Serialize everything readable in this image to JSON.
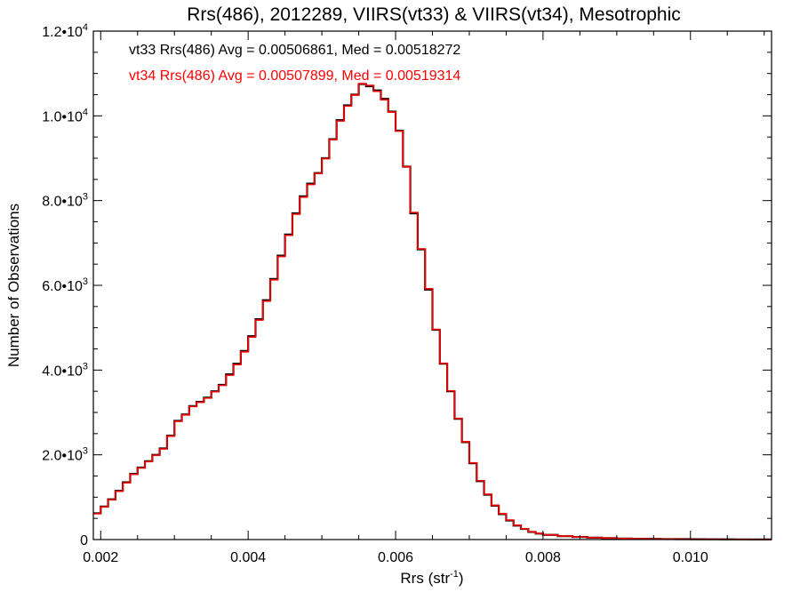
{
  "chart_data": {
    "type": "line",
    "title": "Rrs(486), 2012289, VIIRS(vt33) & VIIRS(vt34), Mesotrophic",
    "xlabel": "Rrs (str",
    "xlabel_sup": "-1",
    "xlabel_suffix": ")",
    "ylabel": "Number of Observations",
    "xlim": [
      0.0019,
      0.0111
    ],
    "ylim": [
      0,
      12000
    ],
    "grid": false,
    "legend_position": "top-left",
    "x_ticks": [
      {
        "value": 0.002,
        "label": "0.002"
      },
      {
        "value": 0.004,
        "label": "0.004"
      },
      {
        "value": 0.006,
        "label": "0.006"
      },
      {
        "value": 0.008,
        "label": "0.008"
      },
      {
        "value": 0.01,
        "label": "0.010"
      }
    ],
    "y_ticks": [
      {
        "value": 0,
        "mant": "0",
        "exp": ""
      },
      {
        "value": 2000,
        "mant": "2.0•10",
        "exp": "3"
      },
      {
        "value": 4000,
        "mant": "4.0•10",
        "exp": "3"
      },
      {
        "value": 6000,
        "mant": "6.0•10",
        "exp": "3"
      },
      {
        "value": 8000,
        "mant": "8.0•10",
        "exp": "3"
      },
      {
        "value": 10000,
        "mant": "1.0•10",
        "exp": "4"
      },
      {
        "value": 12000,
        "mant": "1.2•10",
        "exp": "4"
      }
    ],
    "series": [
      {
        "name": "vt33",
        "legend": "vt33 Rrs(486) Avg = 0.00506861, Med = 0.00518272",
        "color": "#000000",
        "x": [
          0.0019,
          0.002,
          0.0021,
          0.0022,
          0.0023,
          0.0024,
          0.0025,
          0.0026,
          0.0027,
          0.0028,
          0.0029,
          0.003,
          0.0031,
          0.0032,
          0.0033,
          0.0034,
          0.0035,
          0.0036,
          0.0037,
          0.0038,
          0.0039,
          0.004,
          0.0041,
          0.0042,
          0.0043,
          0.0044,
          0.0045,
          0.0046,
          0.0047,
          0.0048,
          0.0049,
          0.005,
          0.0051,
          0.0052,
          0.0053,
          0.0054,
          0.0055,
          0.0056,
          0.0057,
          0.0058,
          0.0059,
          0.006,
          0.0061,
          0.0062,
          0.0063,
          0.0064,
          0.0065,
          0.0066,
          0.0067,
          0.0068,
          0.0069,
          0.007,
          0.0071,
          0.0072,
          0.0073,
          0.0074,
          0.0075,
          0.0076,
          0.0077,
          0.0078,
          0.0079,
          0.008,
          0.0082,
          0.0084,
          0.0086,
          0.0088,
          0.009,
          0.0092,
          0.0094,
          0.0096,
          0.0098,
          0.01,
          0.0102,
          0.0104,
          0.0106,
          0.0108,
          0.011,
          0.0111
        ],
        "values": [
          620,
          780,
          950,
          1150,
          1350,
          1550,
          1700,
          1850,
          2000,
          2150,
          2450,
          2800,
          2950,
          3150,
          3250,
          3350,
          3500,
          3650,
          3900,
          4150,
          4450,
          4800,
          5200,
          5650,
          6150,
          6700,
          7200,
          7700,
          8100,
          8400,
          8650,
          9000,
          9450,
          9900,
          10250,
          10500,
          10750,
          10700,
          10600,
          10400,
          10100,
          9650,
          8800,
          7700,
          6850,
          5900,
          4950,
          4150,
          3500,
          2850,
          2300,
          1800,
          1380,
          1060,
          800,
          600,
          450,
          330,
          250,
          180,
          140,
          110,
          80,
          60,
          45,
          35,
          25,
          20,
          15,
          12,
          10,
          8,
          6,
          5,
          4,
          3,
          2,
          2
        ]
      },
      {
        "name": "vt34",
        "legend": "vt34 Rrs(486) Avg = 0.00507899, Med = 0.00519314",
        "color": "#ff0000",
        "x": [
          0.0019,
          0.002,
          0.0021,
          0.0022,
          0.0023,
          0.0024,
          0.0025,
          0.0026,
          0.0027,
          0.0028,
          0.0029,
          0.003,
          0.0031,
          0.0032,
          0.0033,
          0.0034,
          0.0035,
          0.0036,
          0.0037,
          0.0038,
          0.0039,
          0.004,
          0.0041,
          0.0042,
          0.0043,
          0.0044,
          0.0045,
          0.0046,
          0.0047,
          0.0048,
          0.0049,
          0.005,
          0.0051,
          0.0052,
          0.0053,
          0.0054,
          0.0055,
          0.0056,
          0.0057,
          0.0058,
          0.0059,
          0.006,
          0.0061,
          0.0062,
          0.0063,
          0.0064,
          0.0065,
          0.0066,
          0.0067,
          0.0068,
          0.0069,
          0.007,
          0.0071,
          0.0072,
          0.0073,
          0.0074,
          0.0075,
          0.0076,
          0.0077,
          0.0078,
          0.0079,
          0.008,
          0.0082,
          0.0084,
          0.0086,
          0.0088,
          0.009,
          0.0092,
          0.0094,
          0.0096,
          0.0098,
          0.01,
          0.0102,
          0.0104,
          0.0106,
          0.0108,
          0.011,
          0.0111
        ],
        "values": [
          610,
          770,
          940,
          1140,
          1340,
          1540,
          1690,
          1840,
          1990,
          2140,
          2440,
          2790,
          2940,
          3140,
          3240,
          3340,
          3490,
          3640,
          3880,
          4130,
          4430,
          4780,
          5180,
          5630,
          6130,
          6680,
          7180,
          7680,
          8080,
          8380,
          8640,
          8990,
          9440,
          9880,
          10230,
          10490,
          10760,
          10720,
          10580,
          10380,
          10090,
          9640,
          8800,
          7720,
          6860,
          5920,
          4960,
          4160,
          3510,
          2860,
          2310,
          1810,
          1390,
          1070,
          810,
          610,
          460,
          340,
          255,
          185,
          145,
          112,
          82,
          62,
          46,
          36,
          26,
          20,
          15,
          12,
          10,
          8,
          6,
          5,
          4,
          3,
          2,
          2
        ]
      }
    ]
  }
}
